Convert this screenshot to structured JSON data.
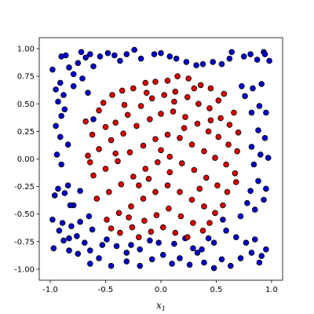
{
  "chart_data": {
    "type": "scatter",
    "title": "",
    "xlabel": "x",
    "xlabel_subscript": "1",
    "ylabel": "",
    "xlim": [
      -1.1,
      1.1
    ],
    "ylim": [
      -1.1,
      1.1
    ],
    "grid": false,
    "x_ticks": [
      "-1.0",
      "-0.5",
      "0.0",
      "0.5",
      "1.0"
    ],
    "y_ticks": [
      "1.00",
      "0.75",
      "0.50",
      "0.25",
      "0.00",
      "-0.25",
      "-0.50",
      "-0.75",
      "-1.00"
    ],
    "colors": {
      "outer": "#0000cc",
      "inner": "#dd0000",
      "edge": "#000000"
    },
    "series": [
      {
        "class": "outer",
        "points": [
          [
            -0.98,
            0.81
          ],
          [
            -0.9,
            0.93
          ],
          [
            -0.86,
            0.94
          ],
          [
            -0.83,
            0.83
          ],
          [
            -0.79,
            0.77
          ],
          [
            -0.75,
            0.87
          ],
          [
            -0.72,
            0.97
          ],
          [
            -0.68,
            0.92
          ],
          [
            -0.64,
            0.95
          ],
          [
            -0.61,
            0.84
          ],
          [
            -0.55,
            0.93
          ],
          [
            -0.48,
            0.96
          ],
          [
            -0.42,
            0.94
          ],
          [
            -0.37,
            0.89
          ],
          [
            -0.31,
            0.95
          ],
          [
            -0.24,
            0.99
          ],
          [
            -0.18,
            0.91
          ],
          [
            -0.06,
            0.95
          ],
          [
            0.0,
            0.96
          ],
          [
            0.08,
            0.93
          ],
          [
            0.14,
            0.91
          ],
          [
            0.23,
            0.88
          ],
          [
            0.32,
            0.85
          ],
          [
            0.38,
            0.86
          ],
          [
            0.47,
            0.88
          ],
          [
            0.55,
            0.86
          ],
          [
            0.62,
            0.91
          ],
          [
            0.64,
            0.97
          ],
          [
            0.75,
            0.93
          ],
          [
            0.81,
            0.95
          ],
          [
            0.87,
            0.9
          ],
          [
            0.93,
            0.97
          ],
          [
            0.98,
            0.89
          ],
          [
            0.94,
            0.95
          ],
          [
            -0.95,
            0.63
          ],
          [
            -0.91,
            0.69
          ],
          [
            -0.88,
            0.58
          ],
          [
            -0.93,
            0.52
          ],
          [
            -0.9,
            0.39
          ],
          [
            -0.95,
            0.3
          ],
          [
            -0.91,
            0.2
          ],
          [
            -0.94,
            0.04
          ],
          [
            -0.9,
            -0.05
          ],
          [
            -0.93,
            -0.27
          ],
          [
            -0.96,
            -0.33
          ],
          [
            -0.87,
            -0.31
          ],
          [
            -0.84,
            -0.24
          ],
          [
            -0.79,
            -0.42
          ],
          [
            -0.73,
            -0.29
          ],
          [
            -0.65,
            -0.52
          ],
          [
            -0.98,
            -0.55
          ],
          [
            -0.89,
            -0.58
          ],
          [
            -0.81,
            -0.61
          ],
          [
            -0.92,
            -0.65
          ],
          [
            -0.83,
            -0.72
          ],
          [
            -0.76,
            -0.7
          ],
          [
            -0.88,
            -0.74
          ],
          [
            -0.69,
            -0.76
          ],
          [
            -0.97,
            -0.81
          ],
          [
            -0.83,
            -0.83
          ],
          [
            -0.75,
            -0.86
          ],
          [
            -0.64,
            -0.83
          ],
          [
            -0.53,
            -0.78
          ],
          [
            -0.49,
            -0.73
          ],
          [
            -0.4,
            -0.79
          ],
          [
            -0.31,
            -0.85
          ],
          [
            -0.27,
            -0.78
          ],
          [
            -0.19,
            -0.82
          ],
          [
            -0.1,
            -0.74
          ],
          [
            -0.02,
            -0.76
          ],
          [
            -0.64,
            -0.95
          ],
          [
            -0.56,
            -0.9
          ],
          [
            -0.45,
            -0.97
          ],
          [
            -0.31,
            -0.93
          ],
          [
            -0.19,
            -0.97
          ],
          [
            -0.08,
            -0.91
          ],
          [
            0.02,
            -0.87
          ],
          [
            0.1,
            -0.95
          ],
          [
            0.17,
            -0.9
          ],
          [
            0.26,
            -0.96
          ],
          [
            0.33,
            -0.85
          ],
          [
            0.39,
            -0.94
          ],
          [
            0.48,
            -0.99
          ],
          [
            0.55,
            -0.91
          ],
          [
            0.63,
            -0.97
          ],
          [
            0.72,
            -0.9
          ],
          [
            0.82,
            -0.85
          ],
          [
            0.89,
            -0.94
          ],
          [
            0.91,
            -0.88
          ],
          [
            0.95,
            -0.82
          ],
          [
            0.85,
            -0.73
          ],
          [
            0.77,
            -0.76
          ],
          [
            0.68,
            -0.71
          ],
          [
            0.59,
            -0.65
          ],
          [
            0.48,
            -0.76
          ],
          [
            0.43,
            -0.72
          ],
          [
            0.37,
            -0.82
          ],
          [
            0.29,
            -0.81
          ],
          [
            0.22,
            -0.72
          ],
          [
            0.12,
            -0.77
          ],
          [
            0.72,
            -0.52
          ],
          [
            0.78,
            -0.4
          ],
          [
            0.85,
            -0.46
          ],
          [
            0.93,
            -0.37
          ],
          [
            0.81,
            -0.29
          ],
          [
            0.88,
            -0.2
          ],
          [
            0.95,
            -0.27
          ],
          [
            0.84,
            -0.05
          ],
          [
            0.9,
            0.04
          ],
          [
            0.97,
            0.01
          ],
          [
            0.82,
            0.11
          ],
          [
            0.88,
            0.26
          ],
          [
            0.94,
            0.19
          ],
          [
            0.82,
            0.42
          ],
          [
            0.89,
            0.48
          ],
          [
            0.95,
            0.42
          ],
          [
            0.76,
            0.57
          ],
          [
            0.83,
            0.64
          ],
          [
            0.91,
            0.68
          ],
          [
            0.73,
            0.66
          ],
          [
            -0.79,
            0.66
          ],
          [
            -0.71,
            0.73
          ],
          [
            -0.66,
            0.6
          ],
          [
            -0.61,
            0.36
          ],
          [
            -0.87,
            0.45
          ],
          [
            -0.84,
            0.13
          ],
          [
            -0.82,
            -0.42
          ],
          [
            -0.73,
            -0.57
          ],
          [
            -0.62,
            -0.64
          ],
          [
            0.56,
            -0.55
          ]
        ]
      },
      {
        "class": "inner",
        "points": [
          [
            -0.56,
            0.44
          ],
          [
            -0.44,
            0.58
          ],
          [
            -0.35,
            0.62
          ],
          [
            -0.25,
            0.64
          ],
          [
            -0.14,
            0.69
          ],
          [
            -0.05,
            0.7
          ],
          [
            0.06,
            0.71
          ],
          [
            0.15,
            0.75
          ],
          [
            0.25,
            0.73
          ],
          [
            0.36,
            0.67
          ],
          [
            0.45,
            0.64
          ],
          [
            0.57,
            0.59
          ],
          [
            -0.62,
            0.22
          ],
          [
            -0.5,
            0.29
          ],
          [
            -0.41,
            0.33
          ],
          [
            -0.3,
            0.4
          ],
          [
            -0.18,
            0.48
          ],
          [
            -0.08,
            0.55
          ],
          [
            0.03,
            0.58
          ],
          [
            0.13,
            0.61
          ],
          [
            0.24,
            0.56
          ],
          [
            0.34,
            0.5
          ],
          [
            0.44,
            0.46
          ],
          [
            0.54,
            0.37
          ],
          [
            0.62,
            0.31
          ],
          [
            0.7,
            0.24
          ],
          [
            -0.66,
            0.03
          ],
          [
            -0.56,
            0.09
          ],
          [
            -0.45,
            0.17
          ],
          [
            -0.34,
            0.23
          ],
          [
            -0.22,
            0.3
          ],
          [
            -0.1,
            0.36
          ],
          [
            0.0,
            0.41
          ],
          [
            0.11,
            0.43
          ],
          [
            0.22,
            0.38
          ],
          [
            0.33,
            0.32
          ],
          [
            0.43,
            0.25
          ],
          [
            0.52,
            0.2
          ],
          [
            0.61,
            0.13
          ],
          [
            0.69,
            0.07
          ],
          [
            -0.61,
            -0.15
          ],
          [
            -0.5,
            -0.09
          ],
          [
            -0.39,
            -0.02
          ],
          [
            -0.28,
            0.06
          ],
          [
            -0.16,
            0.12
          ],
          [
            -0.05,
            0.18
          ],
          [
            0.06,
            0.22
          ],
          [
            0.17,
            0.19
          ],
          [
            0.28,
            0.13
          ],
          [
            0.39,
            0.07
          ],
          [
            0.49,
            0.01
          ],
          [
            0.59,
            -0.05
          ],
          [
            0.67,
            -0.13
          ],
          [
            -0.58,
            -0.36
          ],
          [
            -0.47,
            -0.3
          ],
          [
            -0.36,
            -0.23
          ],
          [
            -0.25,
            -0.16
          ],
          [
            -0.14,
            -0.09
          ],
          [
            -0.03,
            -0.03
          ],
          [
            0.08,
            0.02
          ],
          [
            0.19,
            -0.04
          ],
          [
            0.3,
            -0.1
          ],
          [
            0.41,
            -0.17
          ],
          [
            0.51,
            -0.24
          ],
          [
            0.6,
            -0.3
          ],
          [
            -0.49,
            -0.55
          ],
          [
            -0.38,
            -0.49
          ],
          [
            -0.27,
            -0.43
          ],
          [
            -0.16,
            -0.36
          ],
          [
            -0.05,
            -0.3
          ],
          [
            0.06,
            -0.24
          ],
          [
            0.17,
            -0.3
          ],
          [
            0.28,
            -0.37
          ],
          [
            0.39,
            -0.43
          ],
          [
            0.49,
            -0.49
          ],
          [
            -0.37,
            -0.67
          ],
          [
            -0.26,
            -0.62
          ],
          [
            -0.15,
            -0.56
          ],
          [
            -0.04,
            -0.51
          ],
          [
            0.07,
            -0.45
          ],
          [
            0.18,
            -0.52
          ],
          [
            0.29,
            -0.58
          ],
          [
            0.38,
            -0.65
          ],
          [
            -0.2,
            -0.71
          ],
          [
            -0.09,
            -0.66
          ],
          [
            0.02,
            -0.62
          ],
          [
            0.13,
            -0.67
          ],
          [
            0.24,
            -0.71
          ],
          [
            -0.68,
            0.34
          ],
          [
            -0.64,
            -0.03
          ],
          [
            -0.52,
            0.51
          ],
          [
            0.52,
            0.53
          ],
          [
            0.66,
            0.42
          ],
          [
            0.68,
            -0.21
          ],
          [
            0.56,
            -0.42
          ],
          [
            -0.45,
            -0.63
          ],
          [
            -0.13,
            0.6
          ],
          [
            0.3,
            0.64
          ],
          [
            -0.33,
            0.49
          ],
          [
            0.12,
            0.52
          ],
          [
            -0.41,
            0.05
          ],
          [
            0.45,
            0.35
          ],
          [
            -0.2,
            -0.24
          ],
          [
            0.35,
            -0.27
          ],
          [
            0.0,
            0.08
          ],
          [
            0.08,
            -0.12
          ],
          [
            -0.11,
            -0.18
          ],
          [
            0.21,
            0.28
          ],
          [
            -0.29,
            -0.53
          ],
          [
            0.44,
            -0.58
          ]
        ]
      }
    ]
  }
}
